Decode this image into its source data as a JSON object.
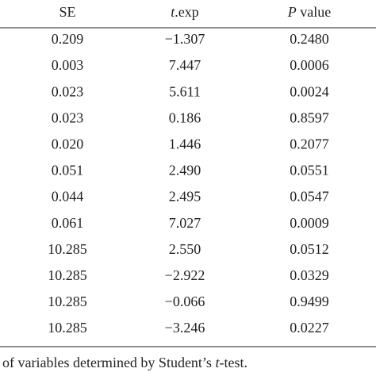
{
  "table": {
    "header": [
      [
        {
          "text": "SE",
          "italic": false
        }
      ],
      [
        {
          "text": "t",
          "italic": true
        },
        {
          "text": ".exp",
          "italic": false
        }
      ],
      [
        {
          "text": "P",
          "italic": true
        },
        {
          "text": " value",
          "italic": false
        }
      ]
    ],
    "rows": [
      [
        "0.209",
        "−1.307",
        "0.2480"
      ],
      [
        "0.003",
        "7.447",
        "0.0006"
      ],
      [
        "0.023",
        "5.611",
        "0.0024"
      ],
      [
        "0.023",
        "0.186",
        "0.8597"
      ],
      [
        "0.020",
        "1.446",
        "0.2077"
      ],
      [
        "0.051",
        "2.490",
        "0.0551"
      ],
      [
        "0.044",
        "2.495",
        "0.0547"
      ],
      [
        "0.061",
        "7.027",
        "0.0009"
      ],
      [
        "10.285",
        "2.550",
        "0.0512"
      ],
      [
        "10.285",
        "−2.922",
        "0.0329"
      ],
      [
        "10.285",
        "−0.066",
        "0.9499"
      ],
      [
        "10.285",
        "−3.246",
        "0.0227"
      ]
    ]
  },
  "footnote": [
    {
      "text": "of variables determined by Student’s ",
      "italic": false
    },
    {
      "text": "t",
      "italic": true
    },
    {
      "text": "-test.",
      "italic": false
    }
  ]
}
